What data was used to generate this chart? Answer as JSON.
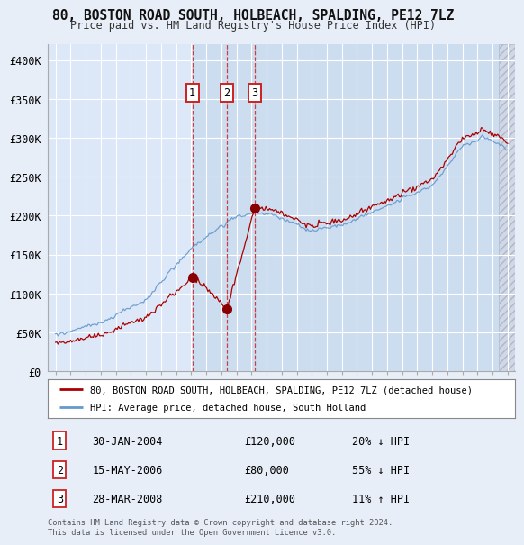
{
  "title": "80, BOSTON ROAD SOUTH, HOLBEACH, SPALDING, PE12 7LZ",
  "subtitle": "Price paid vs. HM Land Registry's House Price Index (HPI)",
  "xlim": [
    1994.5,
    2025.5
  ],
  "ylim": [
    0,
    420000
  ],
  "yticks": [
    0,
    50000,
    100000,
    150000,
    200000,
    250000,
    300000,
    350000,
    400000
  ],
  "ytick_labels": [
    "£0",
    "£50K",
    "£100K",
    "£150K",
    "£200K",
    "£250K",
    "£300K",
    "£350K",
    "£400K"
  ],
  "background_color": "#e8eef8",
  "plot_bg": "#dce8f8",
  "shaded_bg": "#cdddf0",
  "grid_color": "#c8d4e8",
  "sales": [
    {
      "num": 1,
      "date_str": "30-JAN-2004",
      "year": 2004.08,
      "price": 120000,
      "hpi_diff": "20% ↓ HPI"
    },
    {
      "num": 2,
      "date_str": "15-MAY-2006",
      "year": 2006.37,
      "price": 80000,
      "hpi_diff": "55% ↓ HPI"
    },
    {
      "num": 3,
      "date_str": "28-MAR-2008",
      "year": 2008.23,
      "price": 210000,
      "hpi_diff": "11% ↑ HPI"
    }
  ],
  "legend_line1": "80, BOSTON ROAD SOUTH, HOLBEACH, SPALDING, PE12 7LZ (detached house)",
  "legend_line2": "HPI: Average price, detached house, South Holland",
  "footer": "Contains HM Land Registry data © Crown copyright and database right 2024.\nThis data is licensed under the Open Government Licence v3.0.",
  "red_color": "#aa0000",
  "blue_color": "#6699cc",
  "vline_color": "#cc2222",
  "sale_marker_color": "#880000",
  "hatch_start": 2024.42,
  "hatch_end": 2025.5,
  "xtick_start": 1995,
  "xtick_end": 2025
}
